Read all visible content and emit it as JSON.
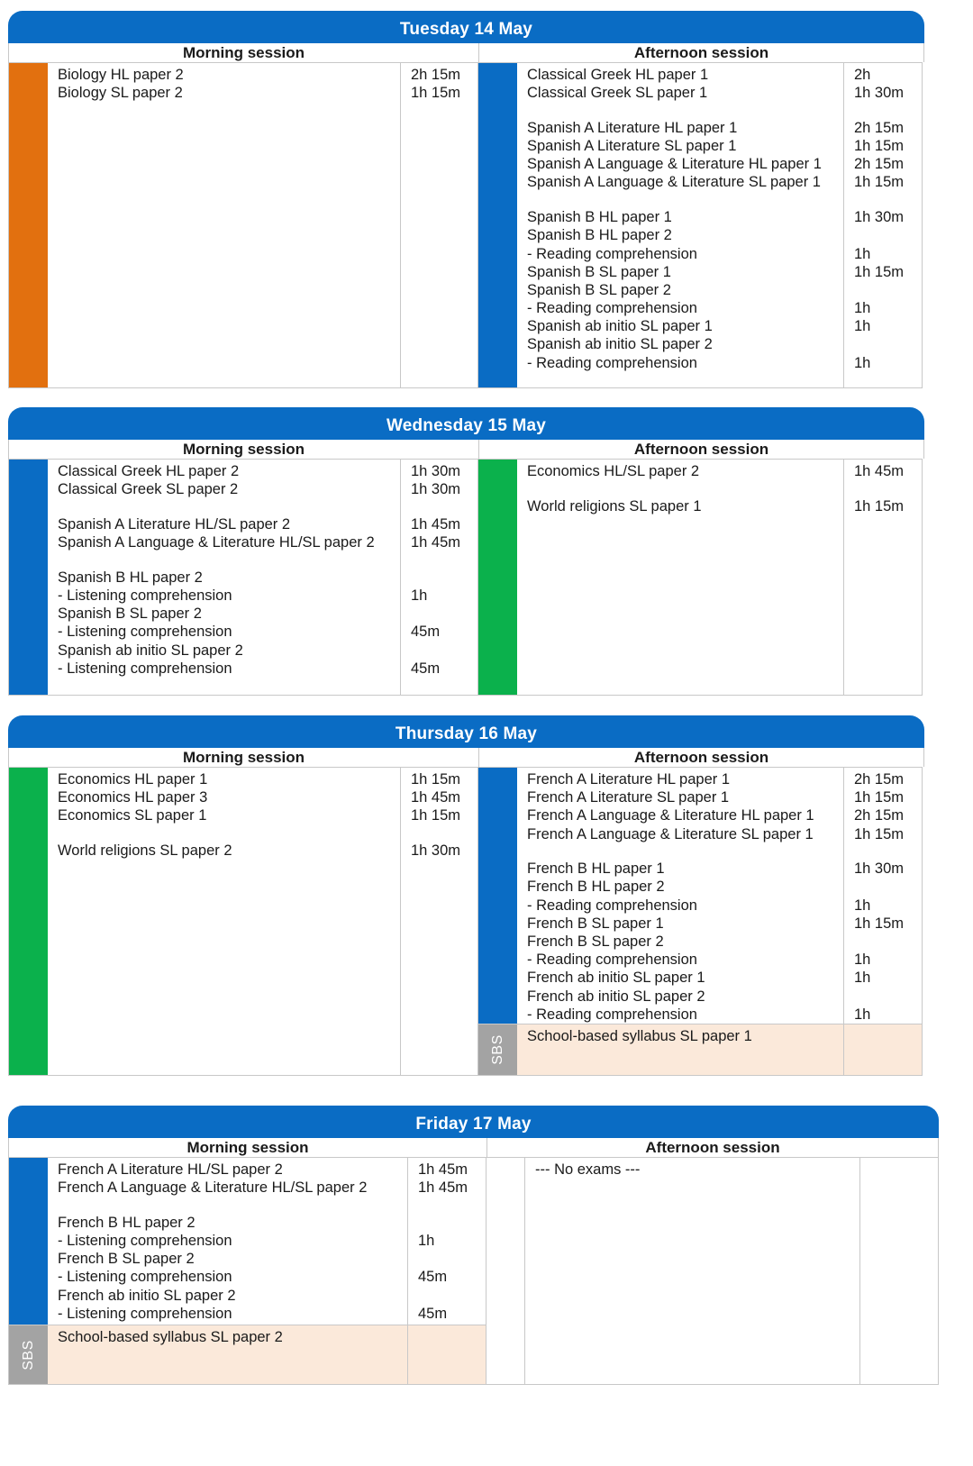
{
  "days": [
    {
      "title": "Tuesday 14 May",
      "morning": {
        "heading": "Morning session",
        "groups": [
          {
            "entries": [
              [
                "Biology HL paper 2",
                "2h 15m"
              ],
              [
                "Biology SL paper 2",
                "1h 15m"
              ]
            ]
          }
        ]
      },
      "afternoon": {
        "heading": "Afternoon session",
        "groups": [
          {
            "entries": [
              [
                "Classical Greek HL paper 1",
                "2h"
              ],
              [
                "Classical Greek SL paper 1",
                "1h 30m"
              ]
            ]
          },
          {
            "entries": [
              [
                "Spanish A Literature HL paper 1",
                "2h 15m"
              ],
              [
                "Spanish A Literature SL paper 1",
                "1h 15m"
              ],
              [
                "Spanish A Language & Literature HL paper 1",
                "2h 15m"
              ],
              [
                "Spanish A Language & Literature SL paper 1",
                "1h 15m"
              ]
            ]
          },
          {
            "entries": [
              [
                "Spanish B HL paper 1",
                "1h 30m"
              ],
              [
                "Spanish B HL paper 2",
                ""
              ],
              [
                "- Reading comprehension",
                "1h"
              ],
              [
                "Spanish B SL paper 1",
                "1h 15m"
              ],
              [
                "Spanish B SL paper 2",
                ""
              ],
              [
                "- Reading comprehension",
                "1h"
              ],
              [
                "Spanish ab initio SL paper 1",
                "1h"
              ],
              [
                "Spanish ab initio SL paper 2",
                ""
              ],
              [
                "- Reading comprehension",
                "1h"
              ]
            ]
          }
        ]
      }
    },
    {
      "title": "Wednesday 15 May",
      "morning": {
        "heading": "Morning session",
        "groups": [
          {
            "entries": [
              [
                "Classical Greek HL paper 2",
                "1h 30m"
              ],
              [
                "Classical Greek SL paper 2",
                "1h 30m"
              ]
            ]
          },
          {
            "entries": [
              [
                "Spanish A Literature HL/SL paper 2",
                "1h 45m"
              ],
              [
                "Spanish A Language & Literature HL/SL paper 2",
                "1h 45m"
              ]
            ]
          },
          {
            "entries": [
              [
                "Spanish B HL paper 2",
                ""
              ],
              [
                "- Listening comprehension",
                "1h"
              ],
              [
                "Spanish B SL paper 2",
                ""
              ],
              [
                "- Listening comprehension",
                "45m"
              ],
              [
                "Spanish ab initio SL paper 2",
                ""
              ],
              [
                "- Listening comprehension",
                "45m"
              ]
            ]
          }
        ]
      },
      "afternoon": {
        "heading": "Afternoon session",
        "groups": [
          {
            "entries": [
              [
                "Economics HL/SL paper 2",
                "1h 45m"
              ]
            ]
          },
          {
            "entries": [
              [
                "World religions SL paper 1",
                "1h 15m"
              ]
            ]
          }
        ]
      }
    },
    {
      "title": "Thursday 16 May",
      "morning": {
        "heading": "Morning session",
        "groups": [
          {
            "entries": [
              [
                "Economics HL paper 1",
                "1h 15m"
              ],
              [
                "Economics HL paper 3",
                "1h 45m"
              ],
              [
                "Economics SL paper 1",
                "1h 15m"
              ]
            ]
          },
          {
            "entries": [
              [
                "World religions SL paper 2",
                "1h 30m"
              ]
            ]
          }
        ]
      },
      "afternoon": {
        "heading": "Afternoon session",
        "groups": [
          {
            "entries": [
              [
                "French A Literature HL paper 1",
                "2h 15m"
              ],
              [
                "French A Literature SL paper 1",
                "1h 15m"
              ],
              [
                "French A Language & Literature HL paper 1",
                "2h 15m"
              ],
              [
                "French A Language & Literature SL paper 1",
                "1h 15m"
              ]
            ]
          },
          {
            "entries": [
              [
                "French B HL paper 1",
                "1h 30m"
              ],
              [
                "French B HL paper 2",
                ""
              ],
              [
                "- Reading comprehension",
                "1h"
              ],
              [
                "French B SL paper 1",
                "1h 15m"
              ],
              [
                "French B SL paper 2",
                ""
              ],
              [
                "- Reading comprehension",
                "1h"
              ],
              [
                "French ab initio SL paper 1",
                "1h"
              ],
              [
                "French ab initio SL paper 2",
                ""
              ],
              [
                "- Reading comprehension",
                "1h"
              ]
            ]
          }
        ],
        "sbs": {
          "label": "SBS",
          "entry": "School-based syllabus SL paper 1",
          "time": ""
        }
      }
    },
    {
      "title": "Friday 17 May",
      "morning": {
        "heading": "Morning session",
        "groups": [
          {
            "entries": [
              [
                "French A Literature HL/SL paper 2",
                "1h 45m"
              ],
              [
                "French A Language & Literature HL/SL paper 2",
                "1h 45m"
              ]
            ]
          },
          {
            "entries": [
              [
                "French B HL paper 2",
                ""
              ],
              [
                "- Listening comprehension",
                "1h"
              ],
              [
                "French B SL paper 2",
                ""
              ],
              [
                "- Listening comprehension",
                "45m"
              ],
              [
                "French ab initio SL paper 2",
                ""
              ],
              [
                "- Listening comprehension",
                "45m"
              ]
            ]
          }
        ],
        "sbs": {
          "label": "SBS",
          "entry": "School-based syllabus SL paper 2",
          "time": ""
        }
      },
      "afternoon": {
        "heading": "Afternoon session",
        "groups": [
          {
            "entries": [
              [
                "--- No exams ---",
                ""
              ]
            ]
          }
        ]
      }
    }
  ],
  "colors": {
    "header": "#0a6cc4",
    "blue_bar": "#0a6cc4",
    "orange_bar": "#e2700f",
    "green_bar": "#0bb14c",
    "sbs_bar": "#a3a3a3",
    "sbs_fill": "#fbe9da"
  },
  "bar_colors": {
    "tuesday_morning": "orange",
    "tuesday_afternoon": "blue",
    "wednesday_morning": "blue",
    "wednesday_afternoon": "green",
    "thursday_morning": "green",
    "thursday_afternoon": "blue",
    "friday_morning": "blue",
    "friday_afternoon": "none"
  }
}
